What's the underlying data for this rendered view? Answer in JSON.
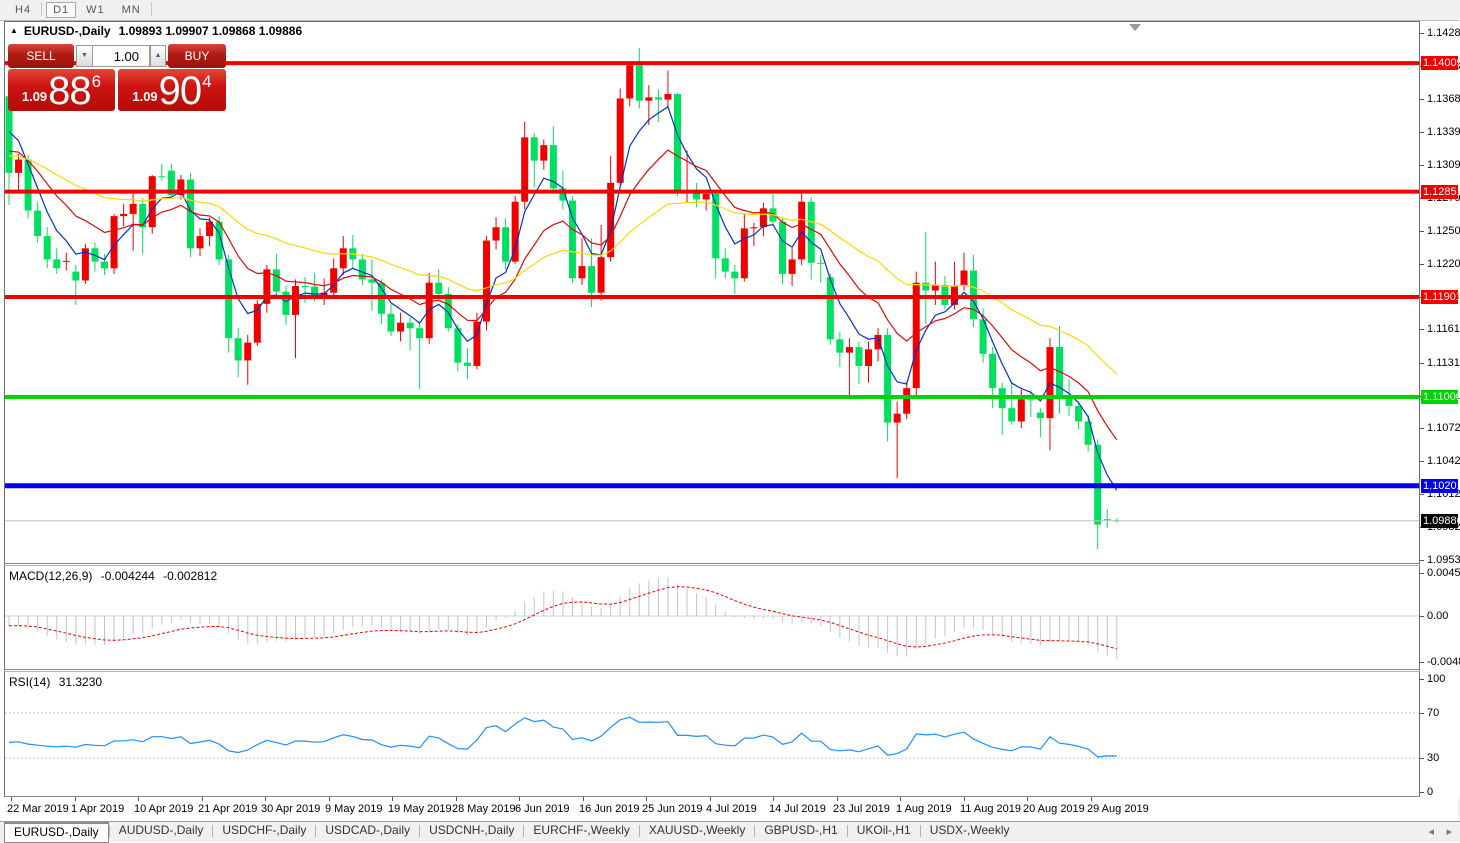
{
  "toolbar": {
    "timeframes": [
      "H4",
      "D1",
      "W1",
      "MN"
    ],
    "active_timeframe": "D1"
  },
  "chart_header": {
    "collapse_arrow": "▲",
    "symbol": "EURUSD-,Daily",
    "ohlc": "1.09893 1.09907 1.09868 1.09886"
  },
  "trade_panel": {
    "sell_label": "SELL",
    "buy_label": "BUY",
    "volume": "1.00",
    "spinner_down": "▼",
    "spinner_up": "▲",
    "sell_price": {
      "small": "1.09",
      "big": "88",
      "sup": "6"
    },
    "buy_price": {
      "small": "1.09",
      "big": "90",
      "sup": "4"
    }
  },
  "indicators": {
    "macd_label": "MACD(12,26,9)",
    "macd_value_main": "-0.004244",
    "macd_value_signal": "-0.002812",
    "macd_scale": [
      "0.004517",
      "0.00",
      "-0.004800"
    ],
    "rsi_label": "RSI(14)",
    "rsi_value": "31.3230",
    "rsi_scale": [
      "100",
      "70",
      "30",
      "0"
    ]
  },
  "price_scale": {
    "ticks": [
      "1.14280",
      "1.13985",
      "1.13685",
      "1.13390",
      "1.13090",
      "1.12795",
      "1.12500",
      "1.12200",
      "1.11905",
      "1.11610",
      "1.11310",
      "1.11010",
      "1.10720",
      "1.10420",
      "1.10125",
      "1.09825",
      "1.09530"
    ],
    "level_labels": [
      {
        "text": "1.14009",
        "price": 1.14009,
        "bg": "#f20000",
        "fg": "#ffffff"
      },
      {
        "text": "1.12851",
        "price": 1.12851,
        "bg": "#f20000",
        "fg": "#ffffff"
      },
      {
        "text": "1.11901",
        "price": 1.11901,
        "bg": "#f20000",
        "fg": "#ffffff"
      },
      {
        "text": "1.11000",
        "price": 1.11,
        "bg": "#00d500",
        "fg": "#ffffff"
      },
      {
        "text": "1.10201",
        "price": 1.10201,
        "bg": "#0000f0",
        "fg": "#ffffff"
      },
      {
        "text": "1.09886",
        "price": 1.09886,
        "bg": "#000000",
        "fg": "#ffffff"
      }
    ]
  },
  "date_axis": [
    "22 Mar 2019",
    "1 Apr 2019",
    "10 Apr 2019",
    "21 Apr 2019",
    "30 Apr 2019",
    "9 May 2019",
    "19 May 2019",
    "28 May 2019",
    "6 Jun 2019",
    "16 Jun 2019",
    "25 Jun 2019",
    "4 Jul 2019",
    "14 Jul 2019",
    "23 Jul 2019",
    "1 Aug 2019",
    "11 Aug 2019",
    "20 Aug 2019",
    "29 Aug 2019"
  ],
  "tabs": {
    "items": [
      "EURUSD-,Daily",
      "AUDUSD-,Daily",
      "USDCHF-,Daily",
      "USDCAD-,Daily",
      "USDCNH-,Daily",
      "EURCHF-,Weekly",
      "XAUUSD-,Weekly",
      "GBPUSD-,H1",
      "UKOil-,H1",
      "USDX-,Weekly"
    ],
    "active": "EURUSD-,Daily",
    "scroll_left": "◂",
    "scroll_right": "▸"
  },
  "chart_data": {
    "type": "candlestick",
    "symbol": "EURUSD-",
    "timeframe": "Daily",
    "colors": {
      "bull": "#f20000",
      "bear": "#00e060",
      "current_price_line": "#c0c0c0"
    },
    "h_lines": [
      {
        "price": 1.14009,
        "color": "#f20000",
        "width": 4
      },
      {
        "price": 1.12851,
        "color": "#f20000",
        "width": 4
      },
      {
        "price": 1.11901,
        "color": "#f20000",
        "width": 4
      },
      {
        "price": 1.11,
        "color": "#00d500",
        "width": 4
      },
      {
        "price": 1.10201,
        "color": "#0000f0",
        "width": 5
      }
    ],
    "current_price": 1.09886,
    "mas": [
      {
        "type": "EMA",
        "period": 5,
        "color": "#0032c8",
        "seed": 1.1358
      },
      {
        "type": "EMA",
        "period": 13,
        "color": "#dc0a0a",
        "seed": 1.1325
      },
      {
        "type": "EMA",
        "period": 34,
        "color": "#ffd700",
        "seed": 1.1318
      }
    ],
    "macd": {
      "fast": 12,
      "slow": 26,
      "signal": 9,
      "hist_color": "#c4c4c4",
      "signal_color": "#f00000",
      "seed_fast": 1.1315,
      "seed_slow": 1.1325,
      "zero_line_color": "#d0d0d0"
    },
    "rsi": {
      "period": 14,
      "color": "#1e90ff",
      "levels": [
        70,
        30
      ],
      "level_color": "#c8c8c8",
      "seed_gain": 0.0035,
      "seed_loss": 0.0045
    },
    "candles": [
      [
        1.1371,
        1.1378,
        1.1273,
        1.1302
      ],
      [
        1.1302,
        1.1319,
        1.1285,
        1.1314
      ],
      [
        1.1314,
        1.1318,
        1.1261,
        1.1268
      ],
      [
        1.1268,
        1.1276,
        1.1239,
        1.1245
      ],
      [
        1.1245,
        1.1253,
        1.1216,
        1.1224
      ],
      [
        1.1224,
        1.1234,
        1.1211,
        1.1216
      ],
      [
        1.12218,
        1.123,
        1.1214,
        1.12222
      ],
      [
        1.1213,
        1.1219,
        1.1183,
        1.1205
      ],
      [
        1.1205,
        1.1238,
        1.1202,
        1.1234
      ],
      [
        1.1234,
        1.1239,
        1.1213,
        1.1222
      ],
      [
        1.1222,
        1.1229,
        1.121,
        1.1216
      ],
      [
        1.1216,
        1.1265,
        1.1211,
        1.1263
      ],
      [
        1.1263,
        1.1274,
        1.1254,
        1.1265
      ],
      [
        1.1265,
        1.1285,
        1.1232,
        1.1274
      ],
      [
        1.1274,
        1.1279,
        1.1229,
        1.1253
      ],
      [
        1.1253,
        1.13,
        1.1247,
        1.1299
      ],
      [
        1.1299,
        1.131,
        1.1295,
        1.12985
      ],
      [
        1.1304,
        1.131,
        1.128,
        1.1282
      ],
      [
        1.1282,
        1.13,
        1.1278,
        1.1296
      ],
      [
        1.1296,
        1.1302,
        1.1226,
        1.1234
      ],
      [
        1.1234,
        1.1252,
        1.1227,
        1.1245
      ],
      [
        1.1245,
        1.1262,
        1.1236,
        1.1258
      ],
      [
        1.1258,
        1.1263,
        1.1219,
        1.1224
      ],
      [
        1.1224,
        1.1228,
        1.114,
        1.1153
      ],
      [
        1.1153,
        1.1162,
        1.1118,
        1.1133
      ],
      [
        1.1133,
        1.1156,
        1.1111,
        1.1149
      ],
      [
        1.1149,
        1.1187,
        1.1146,
        1.1184
      ],
      [
        1.1184,
        1.1219,
        1.1176,
        1.1215
      ],
      [
        1.1215,
        1.1229,
        1.1188,
        1.1195
      ],
      [
        1.1195,
        1.12,
        1.1165,
        1.1174
      ],
      [
        1.1174,
        1.1206,
        1.1135,
        1.12
      ],
      [
        1.12,
        1.1208,
        1.1185,
        1.11996
      ],
      [
        1.11996,
        1.1212,
        1.1186,
        1.1191
      ],
      [
        1.1191,
        1.1207,
        1.1183,
        1.1194
      ],
      [
        1.1194,
        1.1225,
        1.1188,
        1.1216
      ],
      [
        1.1216,
        1.1245,
        1.121,
        1.1234
      ],
      [
        1.1234,
        1.1246,
        1.1216,
        1.1224
      ],
      [
        1.1224,
        1.1229,
        1.1201,
        1.1206
      ],
      [
        1.1206,
        1.1224,
        1.1178,
        1.1203
      ],
      [
        1.1203,
        1.1206,
        1.1166,
        1.1175
      ],
      [
        1.1175,
        1.1184,
        1.1155,
        1.1159
      ],
      [
        1.1159,
        1.1176,
        1.115,
        1.1167
      ],
      [
        1.1167,
        1.1172,
        1.1142,
        1.1162
      ],
      [
        1.1162,
        1.1168,
        1.1107,
        1.1153
      ],
      [
        1.1153,
        1.1212,
        1.1148,
        1.1203
      ],
      [
        1.1203,
        1.1215,
        1.1187,
        1.1193
      ],
      [
        1.1193,
        1.1199,
        1.1159,
        1.1162
      ],
      [
        1.1162,
        1.1166,
        1.1123,
        1.1131
      ],
      [
        1.1131,
        1.1144,
        1.1116,
        1.1128
      ],
      [
        1.1128,
        1.1176,
        1.1125,
        1.1168
      ],
      [
        1.1168,
        1.1245,
        1.116,
        1.1241
      ],
      [
        1.1241,
        1.1262,
        1.1233,
        1.1253
      ],
      [
        1.1253,
        1.1261,
        1.1215,
        1.1222
      ],
      [
        1.1222,
        1.1281,
        1.122,
        1.1276
      ],
      [
        1.1276,
        1.1348,
        1.1269,
        1.1334
      ],
      [
        1.1334,
        1.1338,
        1.1289,
        1.1313
      ],
      [
        1.1313,
        1.1332,
        1.1305,
        1.1327
      ],
      [
        1.1327,
        1.1344,
        1.1283,
        1.1288
      ],
      [
        1.1288,
        1.1304,
        1.1269,
        1.1277
      ],
      [
        1.1277,
        1.1281,
        1.1203,
        1.1207
      ],
      [
        1.1207,
        1.1243,
        1.1201,
        1.1218
      ],
      [
        1.1218,
        1.1243,
        1.1181,
        1.1194
      ],
      [
        1.1194,
        1.1255,
        1.1187,
        1.1226
      ],
      [
        1.1226,
        1.1317,
        1.1222,
        1.1293
      ],
      [
        1.1293,
        1.1378,
        1.1291,
        1.1369
      ],
      [
        1.1369,
        1.1402,
        1.1362,
        1.1399
      ],
      [
        1.1399,
        1.14145,
        1.136,
        1.1367
      ],
      [
        1.1367,
        1.1381,
        1.1345,
        1.137
      ],
      [
        1.137,
        1.1377,
        1.1348,
        1.1368
      ],
      [
        1.1368,
        1.1394,
        1.1361,
        1.1373
      ],
      [
        1.1373,
        1.1374,
        1.1281,
        1.1285
      ],
      [
        1.1285,
        1.1322,
        1.1275,
        1.12853
      ],
      [
        1.1285,
        1.1293,
        1.1271,
        1.1278
      ],
      [
        1.1278,
        1.1286,
        1.1268,
        1.1283
      ],
      [
        1.1283,
        1.1287,
        1.1207,
        1.1225
      ],
      [
        1.1225,
        1.1234,
        1.1207,
        1.1213
      ],
      [
        1.1213,
        1.1219,
        1.1193,
        1.1207
      ],
      [
        1.1207,
        1.1265,
        1.1204,
        1.1252
      ],
      [
        1.1252,
        1.1257,
        1.1236,
        1.1253
      ],
      [
        1.1253,
        1.1275,
        1.1245,
        1.127
      ],
      [
        1.127,
        1.1283,
        1.1255,
        1.1258
      ],
      [
        1.1258,
        1.1262,
        1.1202,
        1.1211
      ],
      [
        1.1211,
        1.1234,
        1.12,
        1.1224
      ],
      [
        1.1224,
        1.1285,
        1.1219,
        1.1276
      ],
      [
        1.1276,
        1.128,
        1.1206,
        1.1221
      ],
      [
        1.1221,
        1.1228,
        1.1203,
        1.12205
      ],
      [
        1.1208,
        1.1211,
        1.1147,
        1.1152
      ],
      [
        1.1152,
        1.1159,
        1.1127,
        1.114
      ],
      [
        1.114,
        1.1153,
        1.1101,
        1.1145
      ],
      [
        1.1145,
        1.115,
        1.1112,
        1.1128
      ],
      [
        1.1128,
        1.115,
        1.1113,
        1.1143
      ],
      [
        1.1143,
        1.1162,
        1.1132,
        1.1156
      ],
      [
        1.1156,
        1.1162,
        1.106,
        1.1077
      ],
      [
        1.1077,
        1.1096,
        1.1027,
        1.1085
      ],
      [
        1.1085,
        1.1114,
        1.108,
        1.1108
      ],
      [
        1.1108,
        1.1213,
        1.1098,
        1.1203
      ],
      [
        1.1203,
        1.1249,
        1.1166,
        1.1196
      ],
      [
        1.1196,
        1.1222,
        1.1183,
        1.1201
      ],
      [
        1.1201,
        1.1209,
        1.1179,
        1.1183
      ],
      [
        1.1183,
        1.1222,
        1.1179,
        1.12
      ],
      [
        1.12,
        1.123,
        1.1196,
        1.1214
      ],
      [
        1.1214,
        1.1228,
        1.1163,
        1.117
      ],
      [
        1.117,
        1.118,
        1.1131,
        1.1139
      ],
      [
        1.1139,
        1.1145,
        1.109,
        1.1108
      ],
      [
        1.1108,
        1.1113,
        1.1066,
        1.109
      ],
      [
        1.109,
        1.1114,
        1.1075,
        1.1078
      ],
      [
        1.1078,
        1.1107,
        1.1072,
        1.1098
      ],
      [
        1.1098,
        1.1106,
        1.1082,
        1.10975
      ],
      [
        1.1086,
        1.109,
        1.1064,
        1.1081
      ],
      [
        1.1081,
        1.1153,
        1.1052,
        1.1145
      ],
      [
        1.1145,
        1.1164,
        1.1085,
        1.1101
      ],
      [
        1.1101,
        1.1116,
        1.1083,
        1.1092
      ],
      [
        1.1092,
        1.1096,
        1.1071,
        1.1078
      ],
      [
        1.1078,
        1.1084,
        1.1051,
        1.1057
      ],
      [
        1.1057,
        1.1062,
        1.0963,
        1.0985
      ],
      [
        1.099,
        1.0999,
        1.0982,
        1.09895
      ],
      [
        1.09893,
        1.09907,
        1.09868,
        1.09886
      ]
    ]
  }
}
